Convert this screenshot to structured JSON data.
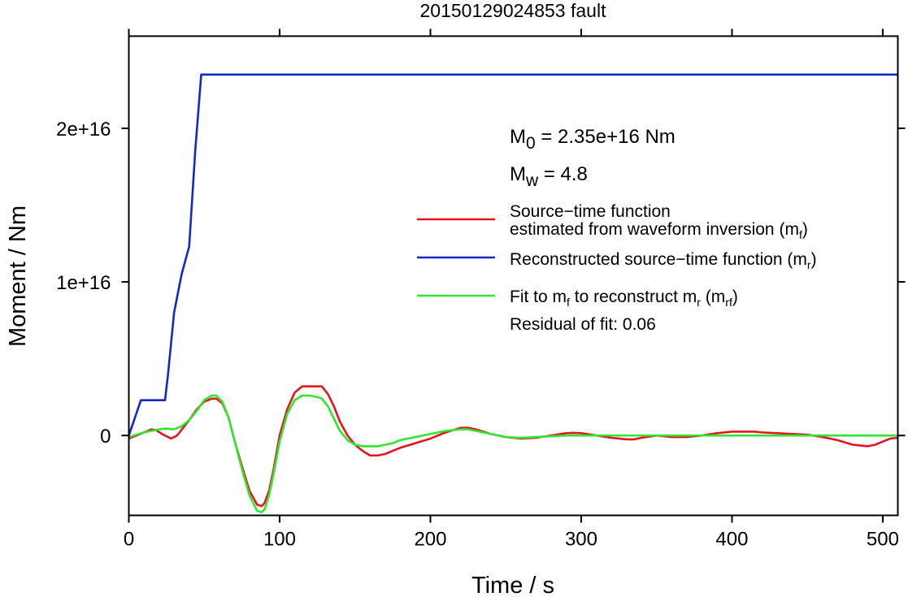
{
  "chart_data": {
    "type": "line",
    "title": "20150129024853 fault",
    "xlabel": "Time / s",
    "ylabel": "Moment / Nm",
    "xlim": [
      0,
      510
    ],
    "ylim": [
      -5200000000000000.0,
      2.6e+16
    ],
    "x_ticks": [
      0,
      100,
      200,
      300,
      400,
      500
    ],
    "x_tick_labels": [
      "0",
      "100",
      "200",
      "300",
      "400",
      "500"
    ],
    "y_ticks": [
      0,
      1e+16,
      2e+16
    ],
    "y_tick_labels": [
      "0",
      "1e+16",
      "2e+16"
    ],
    "grid": false,
    "annotations": {
      "m0": {
        "base": "M",
        "sub": "0",
        "rest": " = 2.35e+16 Nm"
      },
      "mw": {
        "base": "M",
        "sub": "w",
        "rest": " = 4.8"
      },
      "residual": "Residual of fit: 0.06"
    },
    "legend": {
      "placement": "right",
      "entries": [
        {
          "color": "#e8131f",
          "line1": "Source−time function",
          "line2": "estimated from waveform inversion (m",
          "line2_sub": "f",
          "line2_end": ")"
        },
        {
          "color": "#1428c8",
          "line1": "Reconstructed source−time function (m",
          "line1_sub": "r",
          "line1_end": ")"
        },
        {
          "color": "#2ee82e",
          "line1_a": "Fit to m",
          "line1_a_sub": "f",
          "line1_b": " to reconstruct m",
          "line1_b_sub": "r",
          "line1_c": " (m",
          "line1_c_sub": "rf",
          "line1_end": ")"
        }
      ]
    },
    "series": [
      {
        "key": "mf",
        "color": "#e8131f",
        "x": [
          0,
          5,
          10,
          15,
          18,
          22,
          25,
          28,
          32,
          36,
          40,
          45,
          50,
          55,
          58,
          62,
          66,
          70,
          75,
          80,
          85,
          88,
          90,
          93,
          96,
          100,
          105,
          110,
          115,
          120,
          125,
          128,
          132,
          136,
          140,
          145,
          150,
          155,
          160,
          165,
          170,
          175,
          180,
          190,
          200,
          210,
          220,
          225,
          230,
          240,
          250,
          260,
          270,
          280,
          290,
          295,
          300,
          310,
          320,
          330,
          335,
          340,
          350,
          360,
          370,
          380,
          390,
          400,
          410,
          415,
          420,
          430,
          440,
          450,
          460,
          470,
          480,
          490,
          495,
          500,
          505,
          510
        ],
        "y": [
          -200000000000000.0,
          0,
          200000000000000.0,
          400000000000000.0,
          350000000000000.0,
          100000000000000.0,
          -50000000000000.0,
          -200000000000000.0,
          0,
          500000000000000.0,
          1000000000000000.0,
          1700000000000000.0,
          2200000000000000.0,
          2400000000000000.0,
          2400000000000000.0,
          2100000000000000.0,
          1200000000000000.0,
          -300000000000000.0,
          -2000000000000000.0,
          -3600000000000000.0,
          -4500000000000000.0,
          -4600000000000000.0,
          -4400000000000000.0,
          -3600000000000000.0,
          -2200000000000000.0,
          0,
          1700000000000000.0,
          2800000000000000.0,
          3200000000000000.0,
          3200000000000000.0,
          3200000000000000.0,
          3200000000000000.0,
          2700000000000000.0,
          1900000000000000.0,
          900000000000000.0,
          0,
          -600000000000000.0,
          -1000000000000000.0,
          -1300000000000000.0,
          -1300000000000000.0,
          -1200000000000000.0,
          -1000000000000000.0,
          -800000000000000.0,
          -500000000000000.0,
          -200000000000000.0,
          200000000000000.0,
          500000000000000.0,
          500000000000000.0,
          400000000000000.0,
          100000000000000.0,
          -100000000000000.0,
          -200000000000000.0,
          -150000000000000.0,
          0,
          150000000000000.0,
          170000000000000.0,
          150000000000000.0,
          0,
          -150000000000000.0,
          -250000000000000.0,
          -250000000000000.0,
          -150000000000000.0,
          0,
          -100000000000000.0,
          -100000000000000.0,
          0,
          150000000000000.0,
          250000000000000.0,
          250000000000000.0,
          250000000000000.0,
          200000000000000.0,
          150000000000000.0,
          100000000000000.0,
          50000000000000.0,
          -100000000000000.0,
          -300000000000000.0,
          -600000000000000.0,
          -700000000000000.0,
          -600000000000000.0,
          -400000000000000.0,
          -200000000000000.0,
          -150000000000000.0
        ]
      },
      {
        "key": "mr",
        "color": "#1428c8",
        "x": [
          0,
          8,
          24,
          26,
          30,
          35,
          40,
          44,
          48,
          510
        ],
        "y": [
          0,
          2300000000000000.0,
          2300000000000000.0,
          4000000000000000.0,
          8000000000000000.0,
          1.05e+16,
          1.23e+16,
          1.85e+16,
          2.35e+16,
          2.35e+16
        ]
      },
      {
        "key": "mrf",
        "color": "#2ee82e",
        "x": [
          0,
          10,
          20,
          25,
          30,
          35,
          40,
          45,
          50,
          55,
          58,
          62,
          66,
          70,
          75,
          80,
          85,
          88,
          90,
          93,
          96,
          100,
          105,
          110,
          115,
          120,
          125,
          128,
          132,
          136,
          140,
          145,
          150,
          155,
          160,
          165,
          170,
          175,
          180,
          190,
          200,
          210,
          220,
          225,
          230,
          240,
          250,
          260,
          270,
          280,
          290,
          300,
          320,
          340,
          360,
          400,
          450,
          510
        ],
        "y": [
          -100000000000000.0,
          200000000000000.0,
          400000000000000.0,
          450000000000000.0,
          400000000000000.0,
          600000000000000.0,
          1000000000000000.0,
          1600000000000000.0,
          2300000000000000.0,
          2600000000000000.0,
          2600000000000000.0,
          2200000000000000.0,
          1200000000000000.0,
          -300000000000000.0,
          -2200000000000000.0,
          -3900000000000000.0,
          -4900000000000000.0,
          -5000000000000000.0,
          -4800000000000000.0,
          -3900000000000000.0,
          -2500000000000000.0,
          -400000000000000.0,
          1400000000000000.0,
          2300000000000000.0,
          2600000000000000.0,
          2600000000000000.0,
          2500000000000000.0,
          2400000000000000.0,
          1900000000000000.0,
          1100000000000000.0,
          300000000000000.0,
          -300000000000000.0,
          -600000000000000.0,
          -700000000000000.0,
          -700000000000000.0,
          -700000000000000.0,
          -600000000000000.0,
          -500000000000000.0,
          -300000000000000.0,
          -100000000000000.0,
          100000000000000.0,
          300000000000000.0,
          400000000000000.0,
          400000000000000.0,
          300000000000000.0,
          100000000000000.0,
          -100000000000000.0,
          -150000000000000.0,
          -100000000000000.0,
          -50000000000000.0,
          0,
          0,
          0,
          0,
          0,
          0,
          0,
          0
        ]
      }
    ]
  }
}
